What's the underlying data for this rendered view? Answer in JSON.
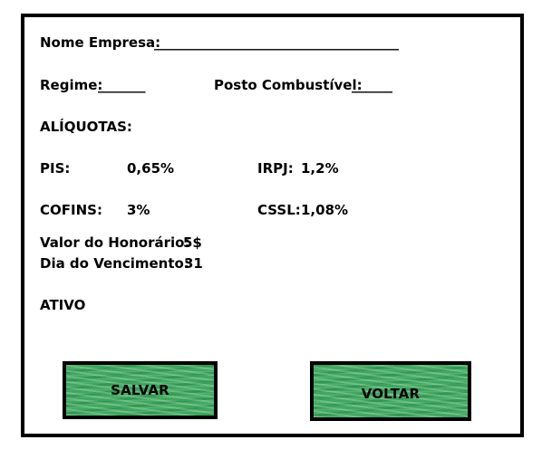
{
  "form": {
    "nome_empresa_label": "Nome Empresa:",
    "nome_empresa_value": "____________________________________",
    "regime_label": "Regime:",
    "regime_value": "_______",
    "posto_label": "Posto Combustível:",
    "posto_value": "______",
    "aliquotas_title": "ALÍQUOTAS:",
    "pis_label": "PIS:",
    "pis_value": "0,65%",
    "irpj_label": "IRPJ:",
    "irpj_value": "1,2%",
    "cofins_label": "COFINS:",
    "cofins_value": "3%",
    "cssl_label": "CSSL:",
    "cssl_value": "1,08%",
    "honorario_label": "Valor do Honorário:",
    "honorario_value": "5$",
    "vencimento_label": "Dia do Vencimento:",
    "vencimento_value": "31",
    "status": "ATIVO"
  },
  "buttons": {
    "save_label": "SALVAR",
    "back_label": "VOLTAR"
  },
  "colors": {
    "button_green": "#3fa85f",
    "border": "#000000"
  }
}
